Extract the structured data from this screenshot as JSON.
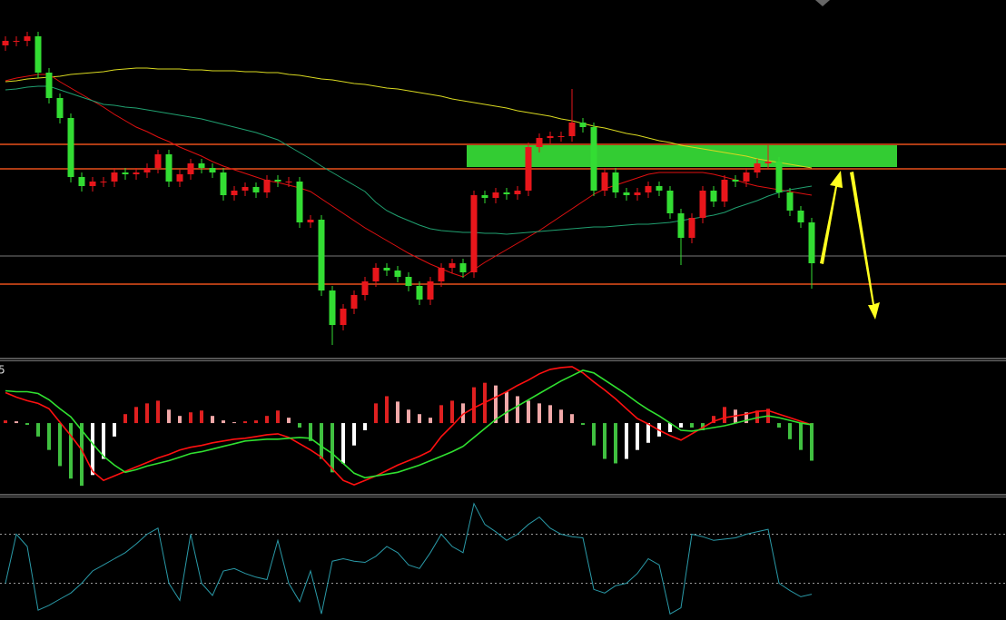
{
  "chart_data": [
    {
      "type": "candlestick",
      "open": [
        345,
        350,
        350,
        355,
        315,
        287,
        265,
        200,
        190,
        195,
        195,
        205,
        203,
        205,
        210,
        225,
        195,
        203,
        215,
        210,
        205,
        180,
        185,
        189,
        183,
        197,
        195,
        195,
        150,
        153,
        75,
        37,
        55,
        70,
        85,
        100,
        97,
        90,
        80,
        65,
        85,
        100,
        105,
        95,
        180,
        177,
        183,
        181,
        185,
        233,
        243,
        245,
        245,
        260,
        255,
        185,
        205,
        183,
        180,
        183,
        190,
        185,
        160,
        133,
        155,
        185,
        173,
        197,
        195,
        205,
        215,
        217,
        183,
        163,
        150
      ],
      "high": [
        355,
        355,
        360,
        360,
        320,
        292,
        270,
        205,
        200,
        200,
        210,
        210,
        210,
        215,
        230,
        230,
        208,
        220,
        220,
        215,
        210,
        190,
        194,
        194,
        202,
        202,
        200,
        200,
        158,
        158,
        80,
        60,
        75,
        90,
        105,
        105,
        102,
        95,
        85,
        90,
        105,
        110,
        110,
        185,
        185,
        188,
        188,
        190,
        238,
        248,
        250,
        250,
        297,
        265,
        260,
        210,
        210,
        188,
        188,
        195,
        195,
        190,
        165,
        160,
        190,
        190,
        202,
        202,
        210,
        220,
        235,
        222,
        188,
        168,
        155
      ],
      "low": [
        339,
        344,
        344,
        309,
        281,
        259,
        194,
        184,
        184,
        189,
        189,
        197,
        197,
        199,
        204,
        189,
        189,
        197,
        204,
        199,
        174,
        174,
        179,
        177,
        177,
        189,
        189,
        144,
        144,
        69,
        15,
        31,
        49,
        64,
        79,
        91,
        84,
        74,
        59,
        59,
        79,
        94,
        89,
        89,
        171,
        171,
        175,
        175,
        179,
        227,
        237,
        239,
        239,
        249,
        179,
        179,
        177,
        174,
        174,
        177,
        179,
        154,
        103,
        127,
        149,
        167,
        167,
        189,
        189,
        199,
        209,
        177,
        157,
        144,
        77
      ],
      "close": [
        350,
        350,
        355,
        315,
        287,
        265,
        200,
        190,
        195,
        195,
        205,
        203,
        205,
        210,
        225,
        195,
        203,
        215,
        210,
        205,
        180,
        185,
        189,
        183,
        197,
        195,
        195,
        150,
        153,
        75,
        37,
        55,
        70,
        85,
        100,
        97,
        90,
        80,
        65,
        85,
        100,
        105,
        95,
        180,
        177,
        183,
        181,
        185,
        233,
        243,
        245,
        245,
        260,
        255,
        185,
        205,
        183,
        180,
        183,
        190,
        185,
        160,
        133,
        155,
        185,
        173,
        197,
        195,
        205,
        215,
        217,
        183,
        163,
        150,
        105
      ],
      "up_color": "#e8161b",
      "down_color": "#33dd33",
      "ylim": [
        0,
        395
      ],
      "series": [
        {
          "color": "#d8d820",
          "values": [
            305,
            306,
            308,
            309,
            310,
            311,
            313,
            314,
            315,
            316,
            318,
            319,
            320,
            320,
            319,
            319,
            319,
            318,
            318,
            317,
            317,
            317,
            316,
            316,
            315,
            315,
            313,
            312,
            310,
            308,
            307,
            305,
            303,
            302,
            300,
            298,
            297,
            295,
            293,
            291,
            289,
            286,
            284,
            282,
            280,
            278,
            276,
            273,
            271,
            269,
            267,
            264,
            262,
            259,
            256,
            254,
            251,
            248,
            246,
            243,
            240,
            238,
            235,
            233,
            231,
            229,
            227,
            225,
            223,
            220,
            218,
            216,
            214,
            212,
            210
          ]
        },
        {
          "color": "#e01010",
          "values": [
            306,
            309,
            311,
            313,
            313,
            305,
            298,
            291,
            284,
            277,
            269,
            262,
            255,
            250,
            244,
            239,
            233,
            228,
            223,
            217,
            212,
            208,
            204,
            200,
            196,
            194,
            191,
            188,
            184,
            176,
            168,
            160,
            152,
            144,
            137,
            130,
            123,
            116,
            110,
            104,
            99,
            94,
            90,
            98,
            106,
            113,
            120,
            127,
            134,
            141,
            149,
            157,
            165,
            173,
            181,
            187,
            191,
            195,
            199,
            203,
            205,
            205,
            205,
            205,
            205,
            203,
            200,
            197,
            193,
            190,
            188,
            186,
            184,
            182,
            180
          ]
        },
        {
          "color": "#20a070",
          "values": [
            296,
            297,
            299,
            300,
            300,
            296,
            292,
            288,
            284,
            280,
            279,
            277,
            276,
            274,
            272,
            270,
            268,
            266,
            264,
            261,
            258,
            255,
            252,
            249,
            245,
            241,
            234,
            227,
            220,
            212,
            205,
            198,
            191,
            184,
            172,
            163,
            157,
            152,
            147,
            143,
            141,
            140,
            139,
            139,
            138,
            138,
            137,
            138,
            139,
            140,
            141,
            142,
            143,
            144,
            145,
            145,
            146,
            147,
            148,
            148,
            149,
            150,
            152,
            154,
            156,
            158,
            161,
            166,
            170,
            174,
            179,
            183,
            186,
            188,
            190
          ]
        }
      ],
      "levels": [
        236,
        209,
        82
      ],
      "level_color": "#e8501a",
      "gray_level": 113,
      "zone": [
        211,
        235
      ],
      "zone_color": "#33cc33"
    },
    {
      "type": "macd",
      "label": "5",
      "ylim": [
        -80,
        70
      ],
      "values": [
        3,
        2,
        -2,
        -15,
        -30,
        -48,
        -62,
        -70,
        -58,
        -40,
        -15,
        10,
        18,
        22,
        25,
        15,
        8,
        12,
        14,
        8,
        3,
        1,
        2,
        3,
        8,
        14,
        6,
        -5,
        -20,
        -40,
        -55,
        -45,
        -25,
        -8,
        22,
        30,
        24,
        15,
        10,
        6,
        20,
        25,
        22,
        40,
        45,
        42,
        35,
        30,
        25,
        22,
        20,
        15,
        10,
        -2,
        -25,
        -40,
        -45,
        -40,
        -30,
        -22,
        -15,
        -10,
        -5,
        -5,
        -8,
        8,
        18,
        15,
        12,
        14,
        16,
        -5,
        -18,
        -30,
        -42
      ],
      "colors": {
        "rising_positive": "#e02020",
        "falling_positive": "#f0a8a8",
        "falling_negative": "#40c040",
        "rising_negative": "#ffffff"
      },
      "series": [
        {
          "color": "#ff1010",
          "values": [
            34,
            29,
            25,
            22,
            16,
            1,
            -14,
            -30,
            -54,
            -64,
            -59,
            -54,
            -49,
            -44,
            -39,
            -35,
            -30,
            -27,
            -25,
            -22,
            -20,
            -18,
            -17,
            -15,
            -13,
            -12,
            -16,
            -23,
            -30,
            -38,
            -51,
            -64,
            -69,
            -64,
            -59,
            -53,
            -47,
            -42,
            -37,
            -31,
            -15,
            -3,
            10,
            17,
            23,
            29,
            35,
            42,
            48,
            55,
            60,
            62,
            63,
            56,
            46,
            37,
            27,
            16,
            5,
            -1,
            -8,
            -14,
            -19,
            -12,
            -5,
            2,
            6,
            8,
            10,
            13,
            14,
            10,
            6,
            2,
            -2
          ]
        },
        {
          "color": "#30e030",
          "values": [
            36,
            35,
            35,
            33,
            26,
            16,
            7,
            -8,
            -23,
            -37,
            -47,
            -55,
            -52,
            -48,
            -45,
            -42,
            -38,
            -34,
            -32,
            -29,
            -26,
            -23,
            -20,
            -19,
            -18,
            -18,
            -17,
            -16,
            -17,
            -26,
            -34,
            -45,
            -56,
            -61,
            -59,
            -57,
            -55,
            -51,
            -47,
            -42,
            -37,
            -32,
            -26,
            -16,
            -6,
            4,
            12,
            19,
            26,
            33,
            40,
            47,
            53,
            59,
            56,
            48,
            40,
            32,
            23,
            15,
            8,
            0,
            -8,
            -9,
            -7,
            -5,
            -3,
            0,
            3,
            6,
            8,
            6,
            3,
            0,
            -2
          ]
        }
      ]
    },
    {
      "type": "line",
      "ylim": [
        0,
        100
      ],
      "levels": [
        70,
        30
      ],
      "series": [
        {
          "color": "#2a9aa8",
          "values": [
            30,
            70,
            60,
            8,
            12,
            17,
            22,
            30,
            40,
            45,
            50,
            55,
            62,
            70,
            75,
            30,
            16,
            70,
            30,
            20,
            40,
            42,
            38,
            35,
            33,
            65,
            30,
            15,
            40,
            5,
            48,
            50,
            48,
            47,
            52,
            60,
            55,
            45,
            42,
            55,
            70,
            60,
            55,
            95,
            78,
            72,
            65,
            70,
            78,
            84,
            75,
            70,
            68,
            67,
            25,
            22,
            28,
            30,
            38,
            50,
            45,
            5,
            10,
            70,
            68,
            65,
            66,
            67,
            70,
            72,
            74,
            30,
            24,
            19,
            21
          ]
        }
      ]
    }
  ]
}
